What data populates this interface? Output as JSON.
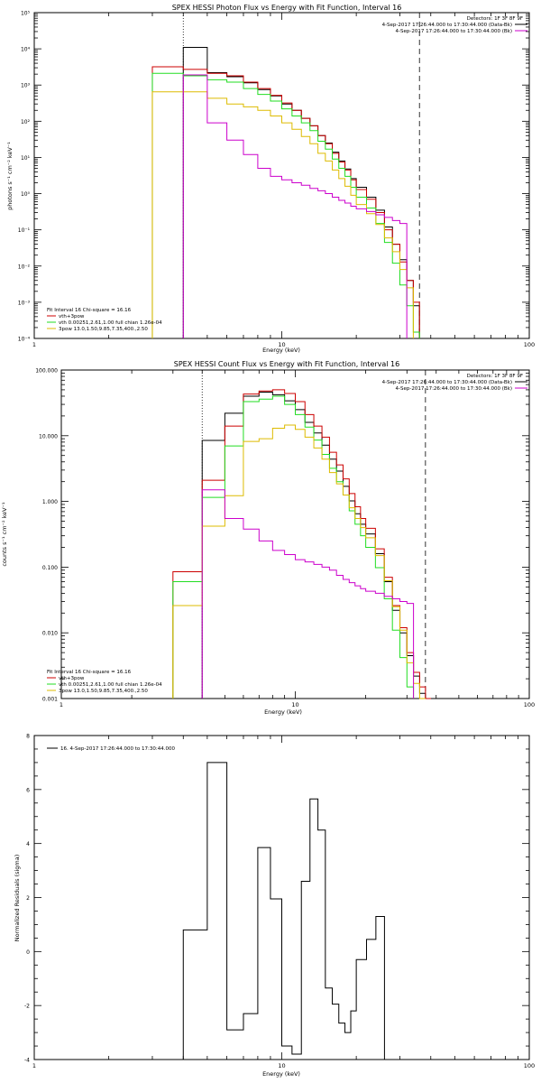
{
  "colors": {
    "black": "#000000",
    "red": "#cc0000",
    "green": "#22dd22",
    "gold": "#ddbb00",
    "magenta": "#cc00cc"
  },
  "chart_data": [
    {
      "type": "line",
      "title": "SPEX HESSI Photon Flux vs Energy with Fit Function, Interval 16",
      "xlabel": "Energy (keV)",
      "ylabel": "photons s⁻¹ cm⁻² keV⁻¹",
      "xscale": "log",
      "yscale": "log",
      "xlim": [
        1,
        100
      ],
      "ylim": [
        0.0001,
        100000
      ],
      "x_ticks": [
        1,
        10,
        100
      ],
      "x_tick_labels": [
        "1",
        "10",
        "100"
      ],
      "y_ticks": [
        0.0001,
        0.01,
        1,
        100,
        10000
      ],
      "y_tick_labels": [
        "10⁻⁴",
        "10⁻²",
        "10⁰",
        "10²",
        "10⁴"
      ],
      "y_ticks_extra": [
        {
          "v": 0.001,
          "label": "10⁻³"
        },
        {
          "v": 0.1,
          "label": "10⁻¹"
        },
        {
          "v": 10,
          "label": "10¹"
        },
        {
          "v": 1000,
          "label": "10³"
        },
        {
          "v": 100000,
          "label": "10⁵"
        }
      ],
      "edges": [
        3,
        4,
        5,
        6,
        7,
        8,
        9,
        10,
        11,
        12,
        13,
        14,
        15,
        16,
        17,
        18,
        19,
        20,
        22,
        24,
        26,
        28,
        30,
        32,
        34,
        36
      ],
      "series": [
        {
          "color": "#000000",
          "values": [
            null,
            11000,
            2200,
            1700,
            1150,
            750,
            500,
            300,
            200,
            120,
            75,
            40,
            25,
            14,
            8,
            4.8,
            2.6,
            1.5,
            0.8,
            0.35,
            0.12,
            0.04,
            0.015,
            0.004,
            0.0008
          ]
        },
        {
          "color": "#cc0000",
          "values": [
            3200,
            2700,
            2100,
            1800,
            1200,
            800,
            520,
            320,
            200,
            120,
            75,
            40,
            24,
            13,
            7.5,
            4.5,
            2.4,
            1.3,
            0.7,
            0.3,
            0.1,
            0.04,
            0.013,
            0.004,
            0.001
          ]
        },
        {
          "color": "#22dd22",
          "values": [
            2100,
            1800,
            1400,
            1200,
            800,
            550,
            360,
            220,
            140,
            90,
            55,
            28,
            17,
            9,
            5,
            3,
            1.5,
            0.8,
            0.4,
            0.15,
            0.045,
            0.012,
            0.003,
            0.0008,
            0.00015
          ]
        },
        {
          "color": "#ddbb00",
          "values": [
            650,
            650,
            430,
            300,
            250,
            200,
            140,
            90,
            60,
            38,
            24,
            13,
            8,
            4.5,
            2.6,
            1.6,
            0.9,
            0.5,
            0.28,
            0.14,
            0.06,
            0.025,
            0.008,
            0.0025,
            null
          ]
        },
        {
          "color": "#cc00cc",
          "values": [
            null,
            1900,
            90,
            30,
            12,
            5,
            3,
            2.4,
            2,
            1.7,
            1.4,
            1.2,
            1.0,
            0.8,
            0.65,
            0.55,
            0.45,
            0.38,
            0.32,
            0.26,
            0.22,
            0.18,
            0.15,
            null,
            null
          ]
        }
      ],
      "vlines": [
        {
          "x": 4,
          "style": "dotted"
        },
        {
          "x": 36,
          "style": "dashed"
        }
      ],
      "legend": {
        "position": "top-right",
        "lines": [
          {
            "text": "Detectors: 1F 3F 8F 9F",
            "color": null
          },
          {
            "text": "4-Sep-2017 17:26:44.000 to 17:30:44.000 (Data-Bk)",
            "color": "#000000"
          },
          {
            "text": "4-Sep-2017 17:26:44.000 to 17:30:44.000 (Bk)",
            "color": "#cc00cc"
          }
        ]
      },
      "fit_legend": {
        "position": "bottom-left",
        "header": "Fit Interval 16    Chi-square = 16.16",
        "lines": [
          {
            "text": "vth+3pow",
            "color": "#cc0000"
          },
          {
            "text": "vth 0.00251,2.61,1.00  full chian 1.26e-04",
            "color": "#22dd22"
          },
          {
            "text": "3pow 13.0,1.50,9.85,7.35,400.,2.50",
            "color": "#ddbb00"
          }
        ]
      }
    },
    {
      "type": "line",
      "title": "SPEX HESSI Count Flux vs Energy with Fit Function, Interval 16",
      "xlabel": "Energy (keV)",
      "ylabel": "counts s⁻¹ cm⁻² keV⁻¹",
      "xscale": "log",
      "yscale": "log",
      "xlim": [
        1,
        100
      ],
      "ylim": [
        0.001,
        100
      ],
      "x_ticks": [
        1,
        10,
        100
      ],
      "x_tick_labels": [
        "1",
        "10",
        "100"
      ],
      "y_ticks": [
        0.001,
        0.01,
        0.1,
        1,
        10,
        100
      ],
      "y_tick_labels": [
        "0.001",
        "0.010",
        "0.100",
        "1.000",
        "10.000",
        "100.000"
      ],
      "edges": [
        3,
        4,
        5,
        6,
        7,
        8,
        9,
        10,
        11,
        12,
        13,
        14,
        15,
        16,
        17,
        18,
        19,
        20,
        22,
        24,
        26,
        28,
        30,
        32,
        34,
        36,
        38,
        40
      ],
      "series": [
        {
          "color": "#000000",
          "values": [
            null,
            8.5,
            22,
            40,
            46,
            42,
            34,
            25,
            16,
            11,
            7.2,
            4.4,
            2.9,
            1.7,
            1.02,
            0.65,
            0.45,
            0.32,
            0.16,
            0.06,
            0.022,
            0.01,
            0.0045,
            0.0022,
            0.0012,
            0.001,
            null
          ]
        },
        {
          "color": "#cc0000",
          "values": [
            0.085,
            2.1,
            14,
            43,
            48,
            50,
            44,
            33,
            21,
            14,
            9.5,
            5.6,
            3.6,
            2.2,
            1.32,
            0.83,
            0.55,
            0.39,
            0.19,
            0.07,
            0.026,
            0.012,
            0.005,
            0.0025,
            0.0015,
            0.001,
            null
          ]
        },
        {
          "color": "#22dd22",
          "values": [
            0.06,
            1.15,
            7,
            33,
            36,
            40,
            30,
            21,
            13.5,
            8.6,
            5.2,
            3.2,
            2.0,
            1.25,
            0.72,
            0.45,
            0.3,
            0.2,
            0.098,
            0.033,
            0.011,
            0.0042,
            0.0015,
            null,
            null,
            null,
            null
          ]
        },
        {
          "color": "#ddbb00",
          "values": [
            0.026,
            0.42,
            1.22,
            8.2,
            9,
            13,
            14.5,
            12.5,
            9.5,
            6.5,
            4.4,
            2.75,
            1.85,
            1.25,
            0.8,
            0.55,
            0.4,
            0.28,
            0.15,
            0.062,
            0.025,
            0.011,
            0.0035,
            0.0017,
            0.001,
            null,
            null
          ]
        },
        {
          "color": "#cc00cc",
          "values": [
            null,
            1.5,
            0.55,
            0.38,
            0.25,
            0.18,
            0.155,
            0.13,
            0.12,
            0.11,
            0.1,
            0.09,
            0.075,
            0.065,
            0.058,
            0.052,
            0.047,
            0.043,
            0.04,
            0.036,
            0.033,
            0.03,
            0.028,
            null,
            null,
            null,
            null
          ]
        }
      ],
      "vlines": [
        {
          "x": 4,
          "style": "dotted"
        },
        {
          "x": 36,
          "style": "dashed"
        }
      ],
      "legend": {
        "position": "top-right",
        "lines": [
          {
            "text": "Detectors: 1F 3F 8F 9F",
            "color": null
          },
          {
            "text": "4-Sep-2017 17:26:44.000 to 17:30:44.000 (Data-Bk)",
            "color": "#000000"
          },
          {
            "text": "4-Sep-2017 17:26:44.000 to 17:30:44.000 (Bk)",
            "color": "#cc00cc"
          }
        ]
      },
      "fit_legend": {
        "position": "bottom-left",
        "header": "Fit Interval 16    Chi-square = 16.16",
        "lines": [
          {
            "text": "vth+3pow",
            "color": "#cc0000"
          },
          {
            "text": "vth 0.00251,2.61,1.00  full chian 1.26e-04",
            "color": "#22dd22"
          },
          {
            "text": "3pow 13.0,1.50,9.85,7.35,400.,2.50",
            "color": "#ddbb00"
          }
        ]
      }
    },
    {
      "type": "line",
      "title": "",
      "xlabel": "Energy (keV)",
      "ylabel": "Normalized Residuals (sigma)",
      "xscale": "log",
      "yscale": "linear",
      "xlim": [
        1,
        100
      ],
      "ylim": [
        -4,
        8
      ],
      "x_ticks": [
        1,
        10,
        100
      ],
      "x_tick_labels": [
        "1",
        "10",
        "100"
      ],
      "y_ticks": [
        -4,
        -2,
        0,
        2,
        4,
        6,
        8
      ],
      "y_tick_labels": [
        "-4",
        "-2",
        "0",
        "2",
        "4",
        "6",
        "8"
      ],
      "edges": [
        4,
        5,
        6,
        7,
        8,
        9,
        10,
        11,
        12,
        13,
        14,
        15,
        16,
        17,
        18,
        19,
        20,
        22,
        24,
        26,
        28,
        30,
        32,
        34,
        36
      ],
      "series": [
        {
          "color": "#000000",
          "values": [
            0.8,
            7.0,
            -2.9,
            -2.3,
            3.85,
            1.95,
            -3.5,
            -3.8,
            2.6,
            5.65,
            4.5,
            -1.35,
            -1.95,
            -2.65,
            -3.0,
            -2.2,
            -0.3,
            0.45,
            1.3,
            null,
            null,
            null,
            null,
            null
          ]
        }
      ],
      "residual_drop_to_bottom": true,
      "legend": {
        "position": "top-left",
        "lines": [
          {
            "text": "16.  4-Sep-2017 17:26:44.000 to 17:30:44.000",
            "color": "#000000"
          }
        ]
      }
    }
  ]
}
